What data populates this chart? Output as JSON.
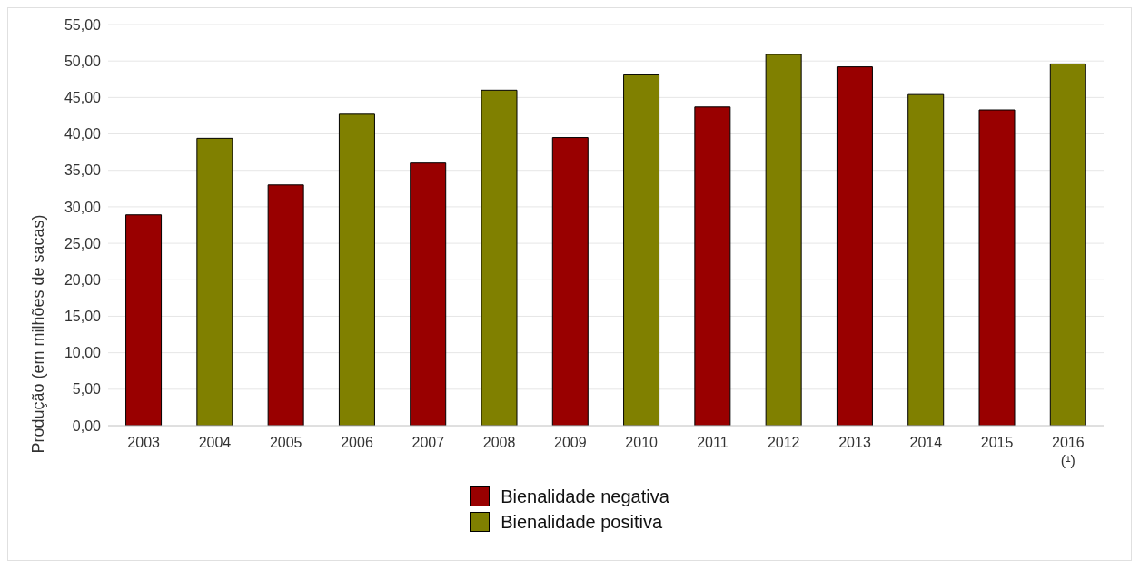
{
  "chart_data": {
    "type": "bar",
    "ylabel": "Produção (em milhões de sacas)",
    "categories": [
      "2003",
      "2004",
      "2005",
      "2006",
      "2007",
      "2008",
      "2009",
      "2010",
      "2011",
      "2012",
      "2013",
      "2014",
      "2015",
      "2016 (¹)"
    ],
    "stacked": true,
    "series": [
      {
        "name": "Bienalidade negativa",
        "color": "#990000",
        "values": [
          28.9,
          null,
          33.0,
          null,
          36.0,
          null,
          39.5,
          null,
          43.7,
          null,
          49.2,
          null,
          43.3,
          null
        ]
      },
      {
        "name": "Bienalidade positiva",
        "color": "#808000",
        "values": [
          null,
          39.4,
          null,
          42.7,
          null,
          46.0,
          null,
          48.1,
          null,
          50.9,
          null,
          45.4,
          null,
          49.6
        ]
      }
    ],
    "ylim": [
      0,
      55
    ],
    "yticks": [
      {
        "value": 0,
        "label": "0,00"
      },
      {
        "value": 5,
        "label": "5,00"
      },
      {
        "value": 10,
        "label": "10,00"
      },
      {
        "value": 15,
        "label": "15,00"
      },
      {
        "value": 20,
        "label": "20,00"
      },
      {
        "value": 25,
        "label": "25,00"
      },
      {
        "value": 30,
        "label": "30,00"
      },
      {
        "value": 35,
        "label": "35,00"
      },
      {
        "value": 40,
        "label": "40,00"
      },
      {
        "value": 45,
        "label": "45,00"
      },
      {
        "value": 50,
        "label": "50,00"
      },
      {
        "value": 55,
        "label": "55,00"
      }
    ],
    "grid": "y",
    "legend": "bottom"
  }
}
